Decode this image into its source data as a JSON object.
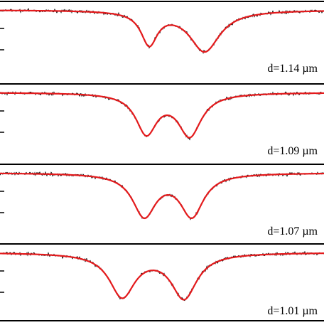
{
  "chart_data": [
    {
      "type": "line",
      "label": "d=1.14 µm",
      "series": [
        {
          "color": "#000000",
          "kind": "measured (noisy)"
        },
        {
          "color": "#e41a1c",
          "kind": "fit"
        }
      ],
      "dips": [
        {
          "center": 210,
          "depth": 0.62,
          "width": 14
        },
        {
          "center": 288,
          "depth": 0.78,
          "width": 26
        }
      ],
      "baseline": 1.0,
      "noise_amplitude": 0.05,
      "grid": false
    },
    {
      "type": "line",
      "label": "d=1.09 µm",
      "series": [
        {
          "color": "#000000",
          "kind": "measured (noisy)"
        },
        {
          "color": "#e41a1c",
          "kind": "fit"
        }
      ],
      "dips": [
        {
          "center": 206,
          "depth": 0.75,
          "width": 18
        },
        {
          "center": 267,
          "depth": 0.8,
          "width": 20
        }
      ],
      "baseline": 1.0,
      "noise_amplitude": 0.05,
      "grid": false
    },
    {
      "type": "line",
      "label": "d=1.07 µm",
      "series": [
        {
          "color": "#000000",
          "kind": "measured (noisy)"
        },
        {
          "color": "#e41a1c",
          "kind": "fit"
        }
      ],
      "dips": [
        {
          "center": 203,
          "depth": 0.8,
          "width": 20
        },
        {
          "center": 270,
          "depth": 0.8,
          "width": 20
        }
      ],
      "baseline": 1.0,
      "noise_amplitude": 0.05,
      "grid": false
    },
    {
      "type": "line",
      "label": "d=1.01 µm",
      "series": [
        {
          "color": "#000000",
          "kind": "measured (noisy)"
        },
        {
          "color": "#e41a1c",
          "kind": "fit"
        }
      ],
      "dips": [
        {
          "center": 172,
          "depth": 0.82,
          "width": 22
        },
        {
          "center": 259,
          "depth": 0.85,
          "width": 22
        }
      ],
      "baseline": 1.0,
      "noise_amplitude": 0.05,
      "grid": false
    }
  ]
}
